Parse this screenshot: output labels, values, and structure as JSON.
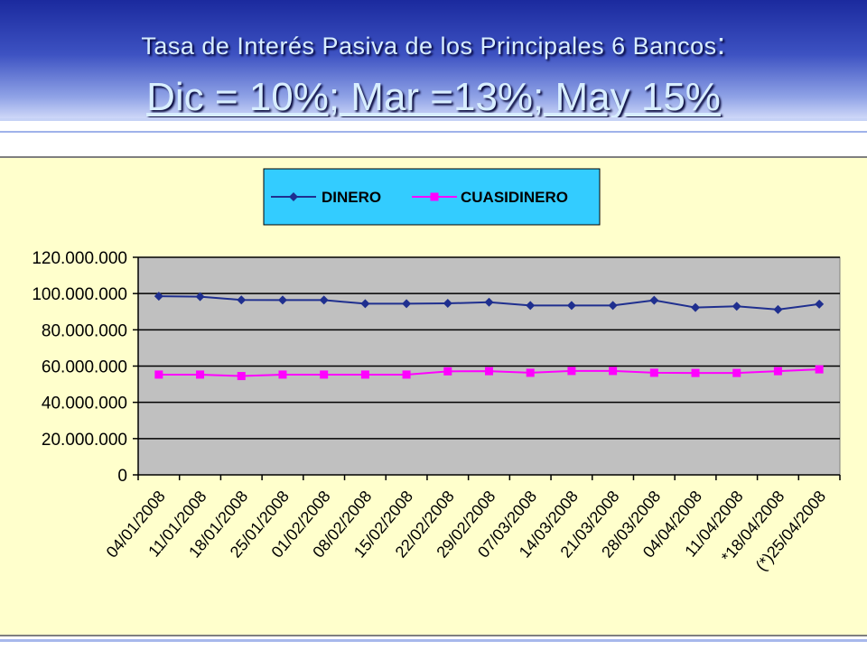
{
  "slide": {
    "title_line1": "Tasa de Interés Pasiva de los Principales 6 Bancos",
    "title_colon": ":",
    "title_line2": "Dic = 10%; Mar =13%; May 15%"
  },
  "colors": {
    "dinero": "#1f2f8f",
    "cuasidinero": "#ff00ff",
    "plot_background": "#c0c0c0",
    "chart_background": "#ffffcc",
    "legend_background": "#33ccff"
  },
  "chart_data": {
    "type": "line",
    "title": "",
    "xlabel": "",
    "ylabel": "",
    "ylim": [
      0,
      120000000
    ],
    "y_ticks": [
      0,
      20000000,
      40000000,
      60000000,
      80000000,
      100000000,
      120000000
    ],
    "y_tick_labels": [
      "0",
      "20.000.000",
      "40.000.000",
      "60.000.000",
      "80.000.000",
      "100.000.000",
      "120.000.000"
    ],
    "grid": true,
    "legend_position": "top",
    "categories": [
      "04/01/2008",
      "11/01/2008",
      "18/01/2008",
      "25/01/2008",
      "01/02/2008",
      "08/02/2008",
      "15/02/2008",
      "22/02/2008",
      "29/02/2008",
      "07/03/2008",
      "14/03/2008",
      "21/03/2008",
      "28/03/2008",
      "04/04/2008",
      "11/04/2008",
      "*18/04/2008",
      "(*)25/04/2008"
    ],
    "series": [
      {
        "name": "DINERO",
        "marker": "diamond",
        "values": [
          98500000,
          98300000,
          96500000,
          96400000,
          96400000,
          94400000,
          94400000,
          94600000,
          95200000,
          93400000,
          93400000,
          93400000,
          96300000,
          92300000,
          93000000,
          91200000,
          94200000
        ]
      },
      {
        "name": "CUASIDINERO",
        "marker": "square",
        "values": [
          55300000,
          55300000,
          54500000,
          55300000,
          55300000,
          55300000,
          55300000,
          57100000,
          57200000,
          56300000,
          57300000,
          57300000,
          56300000,
          56200000,
          56200000,
          57200000,
          58200000
        ]
      }
    ]
  }
}
